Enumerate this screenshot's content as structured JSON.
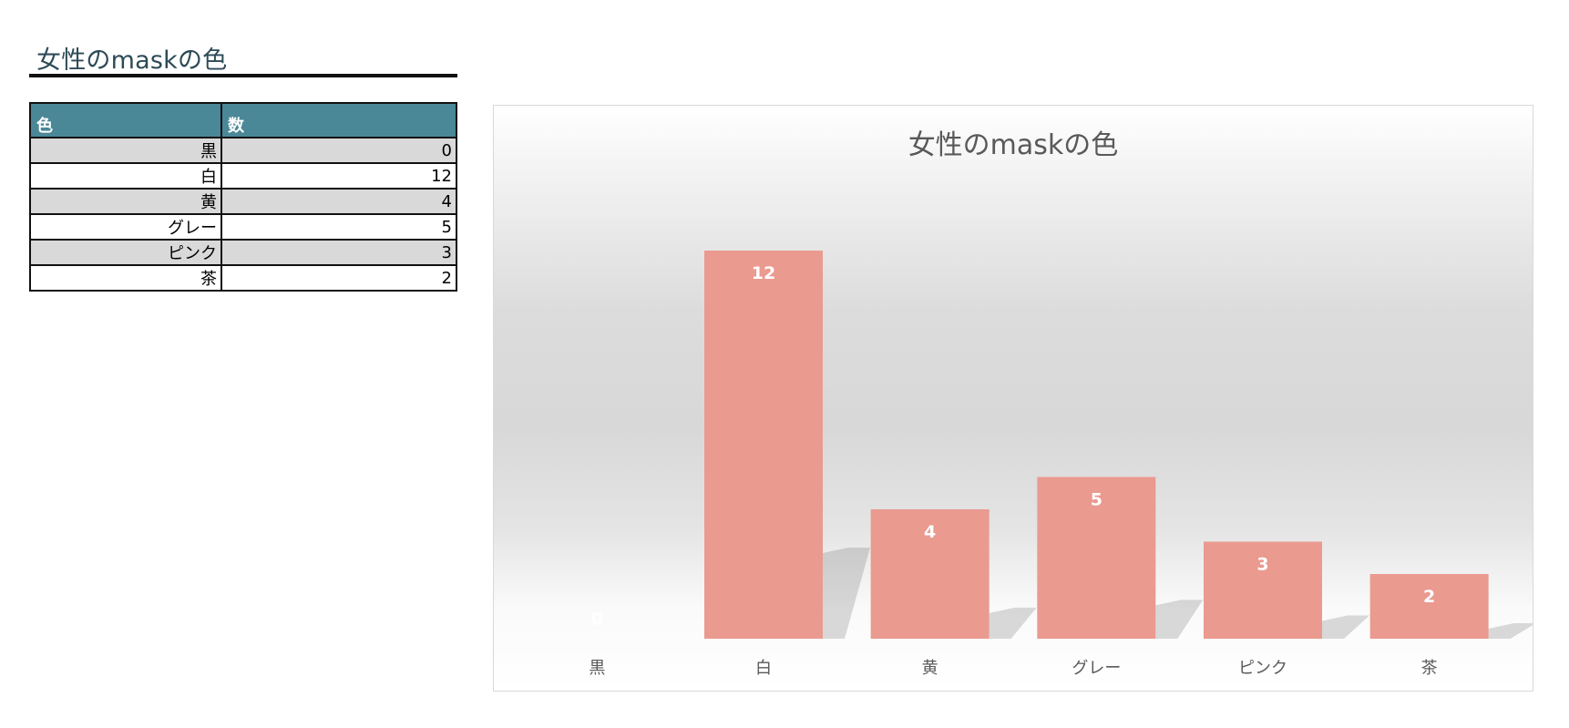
{
  "sheet": {
    "title": "女性のmaskの色"
  },
  "table": {
    "headers": [
      "色",
      "数"
    ],
    "rows": [
      {
        "label": "黒",
        "value": "0"
      },
      {
        "label": "白",
        "value": "12"
      },
      {
        "label": "黄",
        "value": "4"
      },
      {
        "label": "グレー",
        "value": "5"
      },
      {
        "label": "ピンク",
        "value": "3"
      },
      {
        "label": "茶",
        "value": "2"
      }
    ],
    "header_color": "#4a8797",
    "stripe_color": "#d9d9d9"
  },
  "chart_data": {
    "type": "bar",
    "title": "女性のmaskの色",
    "categories": [
      "黒",
      "白",
      "黄",
      "グレー",
      "ピンク",
      "茶"
    ],
    "values": [
      0,
      12,
      4,
      5,
      3,
      2
    ],
    "ylim": [
      0,
      12
    ],
    "xlabel": "",
    "ylabel": "",
    "grid": false,
    "legend": "none",
    "bar_color": "#ea9a8f",
    "data_label_color": "#ffffff",
    "title_color": "#595959",
    "tick_color": "#595959"
  }
}
